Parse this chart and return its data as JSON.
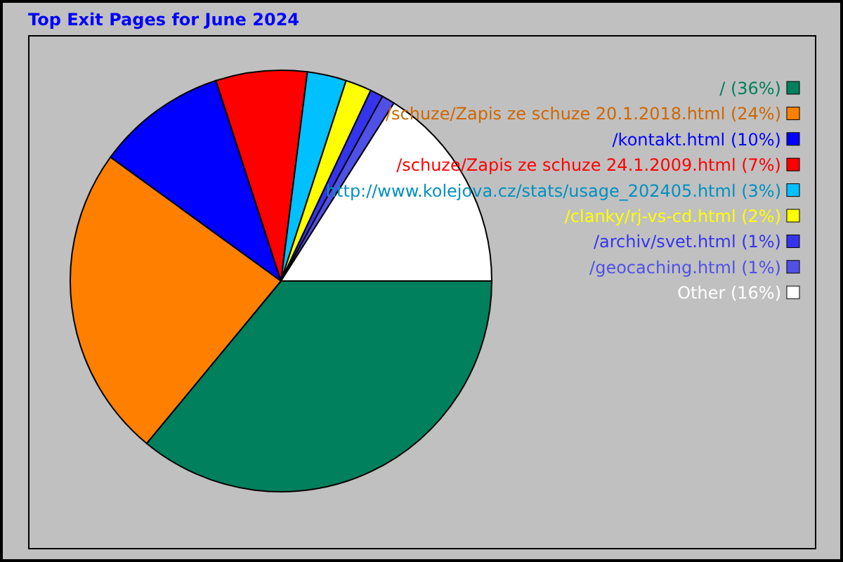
{
  "chart_data": {
    "type": "pie",
    "title": "Top Exit Pages for June 2024",
    "categories": [
      "/",
      "/schuze/Zapis ze schuze 20.1.2018.html",
      "/kontakt.html",
      "/schuze/Zapis ze schuze 24.1.2009.html",
      "http://www.kolejova.cz/stats/usage_202405.html",
      "/clanky/rj-vs-cd.html",
      "/archiv/svet.html",
      "/geocaching.html",
      "Other"
    ],
    "values": [
      36,
      24,
      10,
      7,
      3,
      2,
      1,
      1,
      16
    ],
    "value_labels": [
      "(36%)",
      "(24%)",
      "(10%)",
      "(7%)",
      "(3%)",
      "(2%)",
      "(1%)",
      "(1%)",
      "(16%)"
    ],
    "colors": [
      "#00805c",
      "#ff8000",
      "#0000ff",
      "#ff0000",
      "#00c0ff",
      "#ffff00",
      "#3434ee",
      "#5050e8",
      "#ffffff"
    ],
    "legend": "right"
  }
}
